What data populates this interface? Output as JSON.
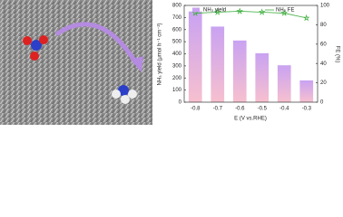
{
  "chart_data": {
    "type": "bar_line",
    "categories": [
      "-0.8",
      "-0.7",
      "-0.6",
      "-0.5",
      "-0.4",
      "-0.3"
    ],
    "x_label": "E (V vs.RHE)",
    "y_label": "NH₃ yield (μmol h⁻¹ cm⁻²)",
    "y2_label": "FE (%)",
    "ylim": [
      0,
      800
    ],
    "yticks": [
      0,
      100,
      200,
      300,
      400,
      500,
      600,
      700,
      800
    ],
    "y2lim": [
      0,
      100
    ],
    "y2ticks": [
      0,
      20,
      40,
      60,
      80,
      100
    ],
    "legend": "top",
    "series": [
      {
        "name": "NH₃ yield",
        "type": "bar",
        "color": "#c9a2f2",
        "values": [
          750,
          625,
          510,
          405,
          305,
          180
        ]
      },
      {
        "name": "NH₃ FE",
        "type": "line",
        "axis": "y2",
        "color": "#3fae3f",
        "values": [
          92,
          93,
          94,
          93,
          92,
          87
        ]
      }
    ]
  }
}
